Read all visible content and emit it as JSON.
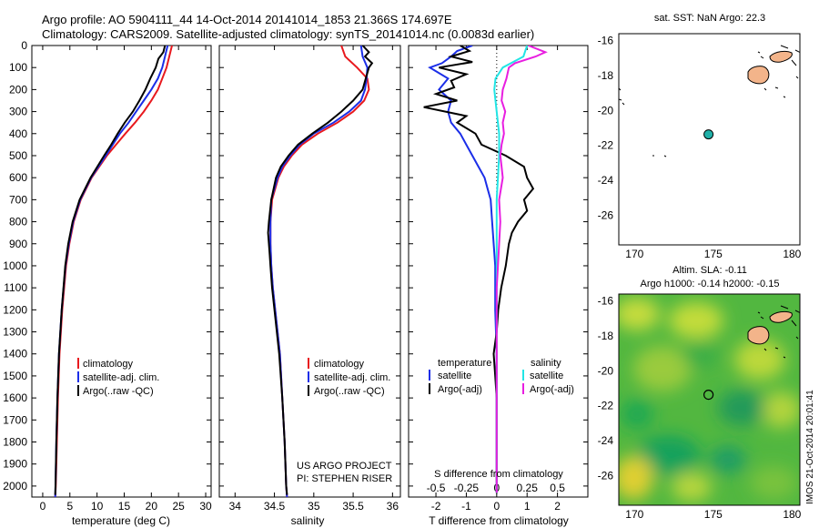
{
  "header": {
    "line1": "Argo profile: AO 5904111_44 14-Oct-2014 20141014_1853 21.366S 174.697E",
    "line2": "Climatology: CARS2009. Satellite-adjusted climatology: synTS_20141014.nc (0.0083d earlier)"
  },
  "colors": {
    "climatology": "#e8191e",
    "satellite": "#1b2ee8",
    "argo": "#000000",
    "satellite_s": "#22e5e5",
    "argo_s": "#e81ee0",
    "land": "#f3b48a",
    "marker": "#20b0a8"
  },
  "credits": {
    "project": "US ARGO PROJECT",
    "pi": "PI: STEPHEN RISER"
  },
  "timestamp": "IMOS 21-Oct-2014 20:01:41",
  "chart_data": [
    {
      "id": "temperature",
      "type": "line",
      "xlabel": "temperature (deg C)",
      "ylabel": "",
      "xlim": [
        -2,
        31
      ],
      "ylim": [
        2050,
        0
      ],
      "xticks": [
        0,
        5,
        10,
        15,
        20,
        25,
        30
      ],
      "yticks": [
        0,
        100,
        200,
        300,
        400,
        500,
        600,
        700,
        800,
        900,
        1000,
        1100,
        1200,
        1300,
        1400,
        1500,
        1600,
        1700,
        1800,
        1900,
        2000
      ],
      "legend": [
        "climatology",
        "satellite-adj. clim.",
        "Argo(..raw -QC)"
      ],
      "legend_position": "lower-middle",
      "series": [
        {
          "name": "climatology",
          "color": "#e8191e",
          "depth": [
            0,
            50,
            100,
            150,
            200,
            250,
            300,
            350,
            400,
            450,
            500,
            600,
            700,
            800,
            900,
            1000,
            1200,
            1400,
            1600,
            1800,
            2000,
            2050
          ],
          "values": [
            23.8,
            23.3,
            22.8,
            22.0,
            21.2,
            20.0,
            18.6,
            17.0,
            15.2,
            13.5,
            11.8,
            9.0,
            7.0,
            5.7,
            4.9,
            4.3,
            3.6,
            3.1,
            2.8,
            2.6,
            2.4,
            2.3
          ]
        },
        {
          "name": "satellite-adj. clim.",
          "color": "#1b2ee8",
          "depth": [
            0,
            50,
            100,
            150,
            200,
            250,
            300,
            350,
            400,
            450,
            500,
            600,
            700,
            800,
            900,
            1000,
            1200,
            1400,
            1600,
            1800,
            2000,
            2050
          ],
          "values": [
            23.0,
            22.5,
            22.0,
            21.2,
            20.0,
            18.6,
            17.2,
            15.8,
            14.2,
            12.9,
            11.6,
            8.9,
            6.9,
            5.6,
            4.8,
            4.2,
            3.5,
            3.0,
            2.7,
            2.5,
            2.35,
            2.3
          ]
        },
        {
          "name": "Argo(..raw -QC)",
          "color": "#000000",
          "depth": [
            0,
            30,
            60,
            100,
            150,
            200,
            250,
            300,
            350,
            400,
            450,
            500,
            600,
            700,
            800,
            900,
            1000,
            1200,
            1400,
            1600,
            1800,
            2000,
            2040
          ],
          "values": [
            22.5,
            22.2,
            21.3,
            20.8,
            19.8,
            18.9,
            17.8,
            16.6,
            15.1,
            13.8,
            12.6,
            11.3,
            8.8,
            6.8,
            5.5,
            4.7,
            4.15,
            3.5,
            3.0,
            2.7,
            2.5,
            2.35,
            2.3
          ]
        }
      ]
    },
    {
      "id": "salinity",
      "type": "line",
      "xlabel": "salinity",
      "ylabel": "",
      "xlim": [
        33.8,
        36.1
      ],
      "ylim": [
        2050,
        0
      ],
      "xticks": [
        34,
        34.5,
        35,
        35.5,
        36
      ],
      "tick_labels": [
        "34",
        "34.5",
        "35",
        "35.5",
        "36"
      ],
      "legend": [
        "climatology",
        "satellite-adj. clim.",
        "Argo(..raw -QC)"
      ],
      "legend_position": "lower-middle",
      "series": [
        {
          "name": "climatology",
          "color": "#e8191e",
          "depth": [
            0,
            50,
            100,
            150,
            200,
            250,
            300,
            350,
            400,
            450,
            500,
            550,
            600,
            700,
            800,
            900,
            1000,
            1100,
            1200,
            1300,
            1400,
            1600,
            1800,
            2000,
            2050
          ],
          "values": [
            35.35,
            35.4,
            35.55,
            35.68,
            35.7,
            35.64,
            35.5,
            35.3,
            35.05,
            34.85,
            34.72,
            34.62,
            34.55,
            34.47,
            34.45,
            34.45,
            34.46,
            34.48,
            34.51,
            34.54,
            34.57,
            34.6,
            34.63,
            34.65,
            34.66
          ]
        },
        {
          "name": "satellite-adj. clim.",
          "color": "#1b2ee8",
          "depth": [
            0,
            50,
            100,
            150,
            200,
            250,
            300,
            350,
            400,
            450,
            500,
            550,
            600,
            700,
            800,
            900,
            1000,
            1100,
            1200,
            1300,
            1400,
            1600,
            1800,
            2000,
            2050
          ],
          "values": [
            35.6,
            35.62,
            35.68,
            35.67,
            35.65,
            35.6,
            35.45,
            35.25,
            35.0,
            34.82,
            34.7,
            34.6,
            34.54,
            34.46,
            34.45,
            34.45,
            34.46,
            34.48,
            34.51,
            34.54,
            34.57,
            34.6,
            34.63,
            34.65,
            34.66
          ]
        },
        {
          "name": "Argo(..raw -QC)",
          "color": "#000000",
          "depth": [
            0,
            30,
            50,
            80,
            100,
            150,
            200,
            250,
            300,
            350,
            400,
            450,
            500,
            550,
            600,
            700,
            800,
            850,
            900,
            950,
            1000,
            1100,
            1200,
            1400,
            1600,
            1800,
            2000,
            2040
          ],
          "values": [
            35.62,
            35.7,
            35.65,
            35.74,
            35.7,
            35.66,
            35.62,
            35.5,
            35.35,
            35.18,
            34.98,
            34.8,
            34.68,
            34.58,
            34.52,
            34.46,
            34.43,
            34.42,
            34.43,
            34.44,
            34.45,
            34.47,
            34.5,
            34.56,
            34.6,
            34.63,
            34.65,
            34.66
          ]
        }
      ]
    },
    {
      "id": "difference",
      "type": "line",
      "xlabel": "T difference from climatology",
      "xlabel_top": "S difference from climatology",
      "xlim_T": [
        -2.9,
        3.0
      ],
      "xlim_S": [
        -0.725,
        0.75
      ],
      "ylim": [
        2050,
        0
      ],
      "xticks_T": [
        -2,
        -1,
        0,
        1,
        2
      ],
      "xticks_S": [
        -0.5,
        -0.25,
        0,
        0.25,
        0.5
      ],
      "tick_labels_S": [
        "-0.5",
        "-0.25",
        "0",
        "0.25",
        "0.5"
      ],
      "legend_left_title": "temperature",
      "legend_right_title": "salinity",
      "legend": [
        "satellite",
        "Argo(-adj)",
        "satellite",
        "Argo(-adj)"
      ],
      "series": [
        {
          "name": "T satellite",
          "color": "#1b2ee8",
          "units": "T",
          "depth": [
            0,
            25,
            50,
            80,
            100,
            150,
            200,
            250,
            300,
            350,
            400,
            450,
            500,
            550,
            600,
            650,
            700,
            800,
            900,
            1000,
            1200,
            1400,
            1600,
            1800,
            2000,
            2030
          ],
          "values": [
            -0.8,
            -1.3,
            -1.5,
            -1.8,
            -2.2,
            -1.6,
            -1.9,
            -1.5,
            -1.6,
            -1.5,
            -1.2,
            -1.0,
            -0.8,
            -0.6,
            -0.4,
            -0.3,
            -0.2,
            -0.15,
            -0.1,
            -0.05,
            -0.05,
            0,
            0,
            0,
            0,
            0
          ]
        },
        {
          "name": "T Argo(-adj)",
          "color": "#000000",
          "units": "T",
          "depth": [
            0,
            25,
            50,
            75,
            100,
            130,
            160,
            190,
            220,
            250,
            280,
            320,
            350,
            400,
            450,
            500,
            550,
            600,
            650,
            700,
            750,
            800,
            850,
            900,
            1000,
            1100,
            1200,
            1300,
            1400,
            1500,
            1600,
            1800,
            2000,
            2030
          ],
          "values": [
            -1.2,
            -0.9,
            -1.5,
            -0.8,
            -1.9,
            -1.0,
            -1.5,
            -1.4,
            -2.0,
            -1.3,
            -2.4,
            -1.0,
            -1.3,
            -0.7,
            -0.5,
            0.3,
            0.9,
            1.0,
            1.2,
            0.9,
            1.0,
            0.7,
            0.5,
            0.4,
            0.3,
            0.15,
            0.05,
            0,
            -0.1,
            -0.05,
            0,
            0,
            0,
            0
          ]
        },
        {
          "name": "S satellite",
          "color": "#22e5e5",
          "units": "S",
          "depth": [
            0,
            50,
            100,
            150,
            200,
            250,
            300,
            400,
            500,
            600,
            700,
            800,
            900,
            1000,
            1200,
            1400,
            1600,
            1800,
            2000,
            2030
          ],
          "values": [
            0.25,
            0.22,
            0.05,
            -0.01,
            -0.02,
            -0.01,
            0.0,
            0.02,
            0.02,
            0.01,
            0.0,
            0.0,
            0.0,
            0.0,
            0.0,
            0.0,
            0.0,
            0.0,
            0.0,
            0.0
          ]
        },
        {
          "name": "S Argo(-adj)",
          "color": "#e81ee0",
          "units": "S",
          "depth": [
            0,
            30,
            50,
            80,
            100,
            150,
            200,
            250,
            300,
            350,
            400,
            450,
            500,
            550,
            600,
            700,
            800,
            900,
            1000,
            1100,
            1200,
            1300,
            1400,
            1600,
            1800,
            2000,
            2030
          ],
          "values": [
            0.26,
            0.4,
            0.32,
            0.15,
            0.1,
            0.08,
            0.05,
            0.04,
            0.07,
            0.05,
            0.06,
            0.04,
            0.03,
            0.04,
            0.05,
            0.02,
            0.03,
            0.02,
            0.01,
            0.0,
            0.0,
            0.0,
            0.0,
            0.0,
            0.0,
            0.0,
            0.0
          ]
        }
      ]
    },
    {
      "id": "sst_map",
      "type": "map",
      "title": "sat. SST: NaN Argo: 22.3",
      "xlim": [
        169,
        180.5
      ],
      "ylim": [
        -27.7,
        -15.6
      ],
      "xticks": [
        170,
        175,
        180
      ],
      "yticks": [
        -16,
        -18,
        -20,
        -22,
        -24,
        -26
      ],
      "float_position": {
        "lon": 174.697,
        "lat": -21.366
      }
    },
    {
      "id": "sla_map",
      "type": "heatmap",
      "title": "Altim. SLA: -0.11",
      "subtitle": "Argo h1000: -0.14 h2000: -0.15",
      "xlim": [
        169,
        180.5
      ],
      "ylim": [
        -27.7,
        -15.6
      ],
      "xticks": [
        170,
        175,
        180
      ],
      "yticks": [
        -16,
        -18,
        -20,
        -22,
        -24,
        -26
      ],
      "float_position": {
        "lon": 174.697,
        "lat": -21.366
      }
    }
  ]
}
